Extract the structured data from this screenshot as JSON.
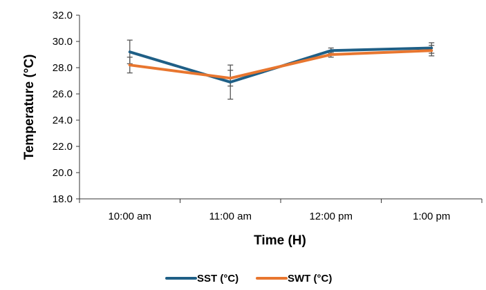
{
  "chart_data": {
    "type": "line",
    "categories": [
      "10:00 am",
      "11:00 am",
      "12:00 pm",
      "1:00 pm"
    ],
    "xlabel": "Time (H)",
    "ylabel": "Temperature (°C)",
    "ylim": [
      18.0,
      32.0
    ],
    "yticks": [
      "18.0",
      "20.0",
      "22.0",
      "24.0",
      "26.0",
      "28.0",
      "30.0",
      "32.0"
    ],
    "grid": false,
    "legend_position": "bottom",
    "series": [
      {
        "name": "SST (°C)",
        "color": "#1f5f86",
        "values": [
          29.2,
          26.9,
          29.3,
          29.5
        ],
        "error": [
          0.9,
          1.3,
          0.2,
          0.4
        ]
      },
      {
        "name": "SWT (°C)",
        "color": "#e8762f",
        "values": [
          28.2,
          27.2,
          29.0,
          29.3
        ],
        "error": [
          0.6,
          0.6,
          0.2,
          0.4
        ]
      }
    ]
  }
}
